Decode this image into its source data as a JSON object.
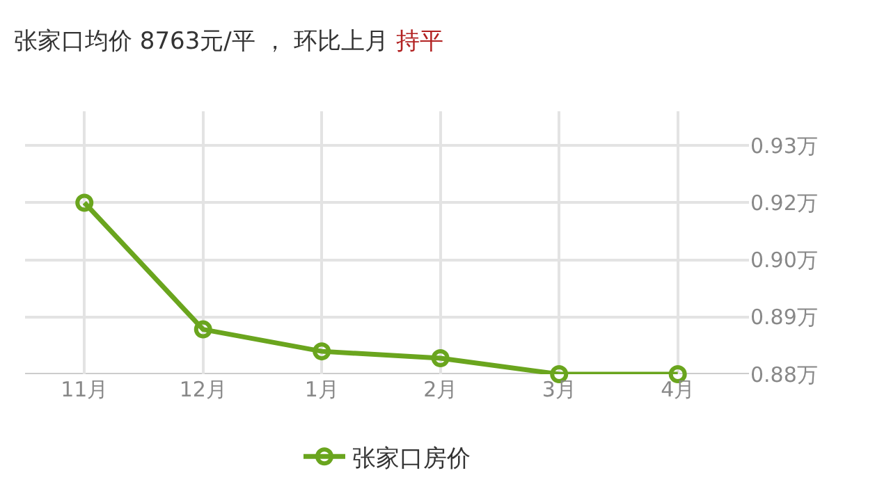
{
  "chart_data": {
    "type": "line",
    "title": "张家口均价 8763元/平 ， 环比上月",
    "subtitle": "持平",
    "categories": [
      "11月",
      "12月",
      "1月",
      "2月",
      "3月",
      "4月"
    ],
    "series": [
      {
        "name": "张家口房价",
        "color": "#6aa51e",
        "values": [
          0.9175,
          0.8898,
          0.885,
          0.8835,
          0.88,
          0.88
        ]
      }
    ],
    "ylim": [
      0.88,
      0.9375
    ],
    "yticks": [
      {
        "value": 0.88,
        "label": "0.88万"
      },
      {
        "value": 0.8925,
        "label": "0.89万"
      },
      {
        "value": 0.905,
        "label": "0.90万"
      },
      {
        "value": 0.9175,
        "label": "0.92万"
      },
      {
        "value": 0.93,
        "label": "0.93万"
      }
    ],
    "grid": true,
    "legend": "bottom",
    "marker": "circle",
    "line_style": "solid"
  }
}
